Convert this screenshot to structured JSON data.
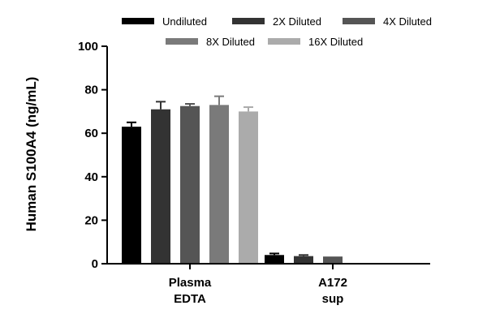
{
  "chart_data": {
    "type": "bar",
    "ylabel": "Human S100A4 (ng/mL)",
    "xlabel": "",
    "ylim": [
      0,
      100
    ],
    "yticks": [
      0,
      20,
      40,
      60,
      80,
      100
    ],
    "categories": [
      [
        "Plasma",
        "EDTA"
      ],
      [
        "A172",
        "sup"
      ]
    ],
    "series": [
      {
        "name": "Undiluted",
        "color": "#000000",
        "values": [
          63.0,
          4.0
        ],
        "errors": [
          2.0,
          0.7
        ]
      },
      {
        "name": "2X Diluted",
        "color": "#333333",
        "values": [
          71.0,
          3.5
        ],
        "errors": [
          3.5,
          0.5
        ]
      },
      {
        "name": "4X Diluted",
        "color": "#555555",
        "values": [
          72.5,
          3.3
        ],
        "errors": [
          1.0,
          0.0
        ]
      },
      {
        "name": "8X Diluted",
        "color": "#7a7a7a",
        "values": [
          73.0,
          null
        ],
        "errors": [
          4.0,
          null
        ]
      },
      {
        "name": "16X Diluted",
        "color": "#ababab",
        "values": [
          70.0,
          null
        ],
        "errors": [
          2.0,
          null
        ]
      }
    ],
    "legend_position": "top"
  }
}
